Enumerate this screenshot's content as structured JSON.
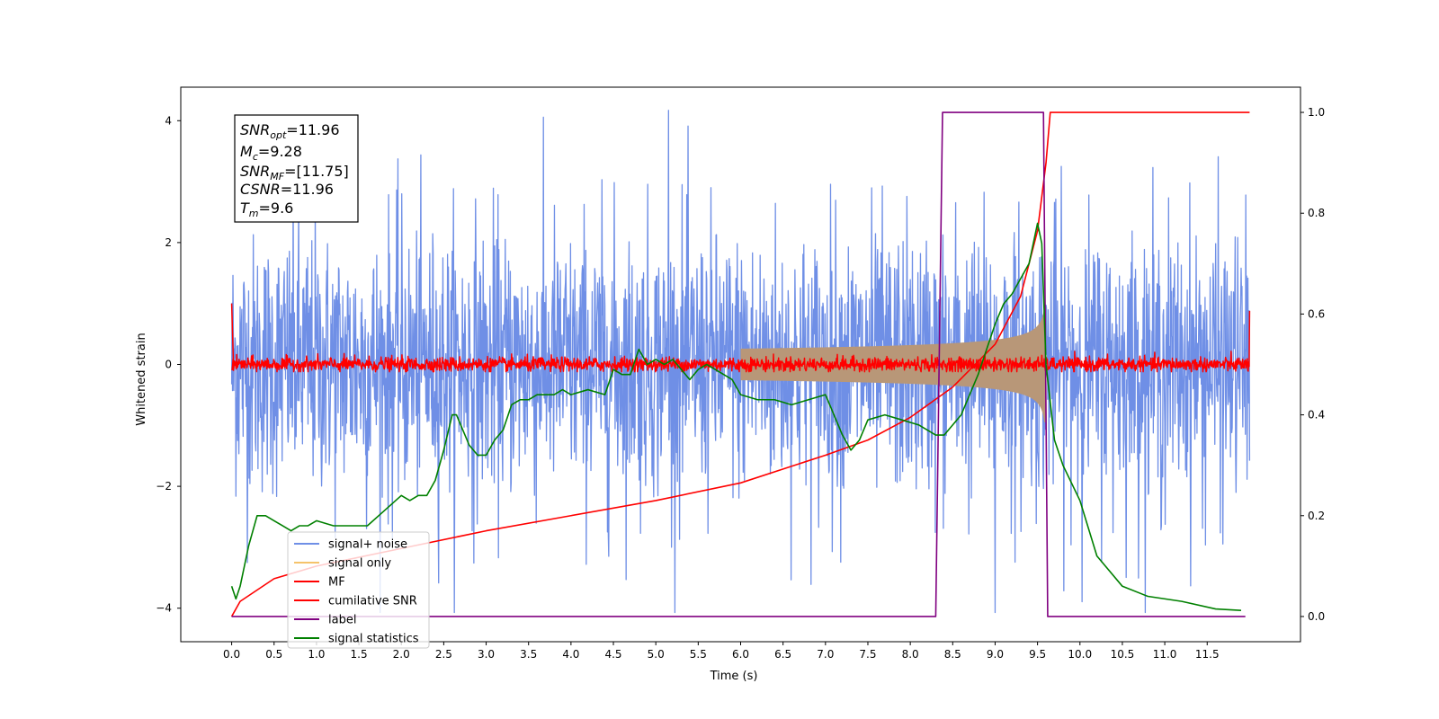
{
  "chart_data": {
    "type": "line",
    "xlabel": "Time (s)",
    "ylabel": "Whitened strain",
    "xlim": [
      -0.6,
      12.6
    ],
    "ylim_left": [
      -4.55,
      4.55
    ],
    "ylim_right": [
      -0.05,
      1.05
    ],
    "x_ticks": [
      "0.0",
      "0.5",
      "1.0",
      "1.5",
      "2.0",
      "2.5",
      "3.0",
      "3.5",
      "4.0",
      "4.5",
      "5.0",
      "5.5",
      "6.0",
      "6.5",
      "7.0",
      "7.5",
      "8.0",
      "8.5",
      "9.0",
      "9.5",
      "10.0",
      "10.5",
      "11.0",
      "11.5"
    ],
    "y_ticks_left": [
      "4",
      "2",
      "0",
      "−2",
      "−4"
    ],
    "y_ticks_right": [
      "1.0",
      "0.8",
      "0.6",
      "0.4",
      "0.2",
      "0.0"
    ],
    "infobox": {
      "snr_opt": {
        "sym": "SNR",
        "sub": "opt",
        "val": "=11.96"
      },
      "mc": {
        "sym": "M",
        "sub": "c",
        "val": "=9.28"
      },
      "snr_mf": {
        "sym": "SNR",
        "sub": "MF",
        "val": "=[11.75]"
      },
      "csnr": {
        "sym": "CSNR",
        "sub": "",
        "val": "=11.96"
      },
      "tm": {
        "sym": "T",
        "sub": "m",
        "val": "=9.6"
      }
    },
    "colors": {
      "signal_noise": "#6f8fe6",
      "signal_only": "#f5c36b",
      "signal_overlap": "#b89778",
      "mf": "#ff0000",
      "cumulative_snr": "#ff0000",
      "label": "#800080",
      "signal_statistics": "#008000"
    },
    "series": [
      {
        "name": "signal+ noise",
        "axis": "left",
        "style": "noise",
        "x_range": [
          0.0,
          12.0
        ],
        "approx_band": [
          -2.5,
          2.5
        ],
        "peak_max": 4.17,
        "peak_min": -4.07
      },
      {
        "name": "signal only",
        "axis": "left",
        "style": "chirp",
        "x_range": [
          0.0,
          9.6
        ],
        "envelope_at_merger": 0.95
      },
      {
        "name": "MF",
        "axis": "left",
        "style": "mf",
        "x_range": [
          0.0,
          12.0
        ],
        "approx_band": [
          -0.15,
          0.15
        ],
        "edge_values": [
          1.0,
          0.88
        ]
      },
      {
        "name": "cumilative SNR",
        "axis": "right",
        "x": [
          0.0,
          0.1,
          0.5,
          1.0,
          2.0,
          3.0,
          4.0,
          5.0,
          6.0,
          7.0,
          7.5,
          8.0,
          8.5,
          9.0,
          9.3,
          9.5,
          9.6,
          9.65,
          12.0
        ],
        "y": [
          0.0,
          0.03,
          0.075,
          0.1,
          0.135,
          0.17,
          0.2,
          0.23,
          0.265,
          0.32,
          0.35,
          0.395,
          0.455,
          0.54,
          0.635,
          0.765,
          0.9,
          1.0,
          1.0
        ]
      },
      {
        "name": "label",
        "axis": "right",
        "x": [
          0.0,
          8.3,
          8.38,
          9.57,
          9.62,
          11.95
        ],
        "y": [
          0.0,
          0.0,
          1.0,
          1.0,
          0.0,
          0.0
        ]
      },
      {
        "name": "signal statistics",
        "axis": "right",
        "x": [
          0.0,
          0.05,
          0.1,
          0.2,
          0.3,
          0.4,
          0.5,
          0.6,
          0.7,
          0.8,
          0.9,
          1.0,
          1.2,
          1.4,
          1.6,
          1.8,
          2.0,
          2.1,
          2.2,
          2.3,
          2.4,
          2.5,
          2.6,
          2.65,
          2.7,
          2.8,
          2.9,
          3.0,
          3.1,
          3.2,
          3.3,
          3.4,
          3.5,
          3.6,
          3.8,
          3.9,
          4.0,
          4.2,
          4.4,
          4.5,
          4.6,
          4.7,
          4.8,
          4.9,
          5.0,
          5.1,
          5.2,
          5.3,
          5.4,
          5.5,
          5.6,
          5.7,
          5.8,
          5.9,
          6.0,
          6.2,
          6.4,
          6.6,
          6.8,
          7.0,
          7.1,
          7.2,
          7.3,
          7.4,
          7.5,
          7.7,
          7.9,
          8.1,
          8.3,
          8.4,
          8.6,
          8.8,
          9.0,
          9.1,
          9.2,
          9.3,
          9.4,
          9.5,
          9.55,
          9.6,
          9.7,
          9.8,
          10.0,
          10.2,
          10.5,
          10.8,
          11.2,
          11.6,
          11.9
        ],
        "y": [
          0.06,
          0.035,
          0.06,
          0.14,
          0.2,
          0.2,
          0.19,
          0.18,
          0.17,
          0.18,
          0.18,
          0.19,
          0.18,
          0.18,
          0.18,
          0.21,
          0.24,
          0.23,
          0.24,
          0.24,
          0.27,
          0.33,
          0.4,
          0.4,
          0.38,
          0.34,
          0.32,
          0.32,
          0.35,
          0.37,
          0.42,
          0.43,
          0.43,
          0.44,
          0.44,
          0.45,
          0.44,
          0.45,
          0.44,
          0.49,
          0.48,
          0.48,
          0.53,
          0.5,
          0.51,
          0.5,
          0.51,
          0.49,
          0.47,
          0.49,
          0.5,
          0.49,
          0.48,
          0.47,
          0.44,
          0.43,
          0.43,
          0.42,
          0.43,
          0.44,
          0.4,
          0.36,
          0.33,
          0.35,
          0.39,
          0.4,
          0.39,
          0.38,
          0.36,
          0.36,
          0.4,
          0.48,
          0.58,
          0.62,
          0.64,
          0.67,
          0.7,
          0.78,
          0.74,
          0.5,
          0.35,
          0.3,
          0.23,
          0.12,
          0.06,
          0.04,
          0.03,
          0.015,
          0.012
        ]
      }
    ]
  }
}
